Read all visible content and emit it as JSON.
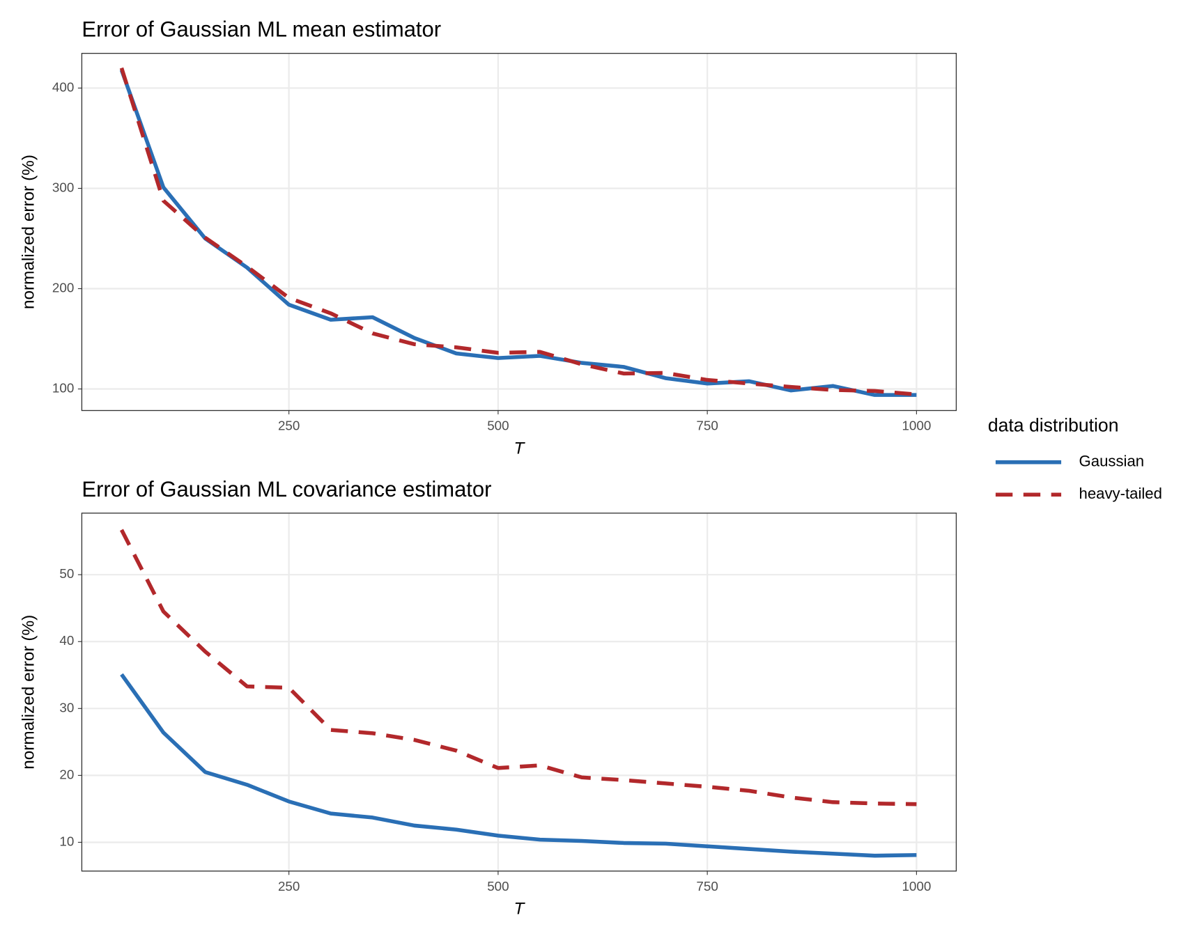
{
  "chart_data": [
    {
      "type": "line",
      "title": "Error of Gaussian ML mean estimator",
      "x_label": "T",
      "y_label": "normalized error (%)",
      "x": [
        50,
        100,
        150,
        200,
        250,
        300,
        350,
        400,
        450,
        500,
        550,
        600,
        650,
        700,
        750,
        800,
        850,
        900,
        950,
        1000
      ],
      "series": [
        {
          "name": "Gaussian",
          "color": "#2a6fb5",
          "linestyle": "solid",
          "values": [
            418,
            301,
            250,
            221,
            184,
            169,
            171.5,
            150.8,
            135.4,
            130.8,
            133,
            126,
            122,
            110.8,
            105.4,
            107.7,
            98.5,
            103,
            94,
            94
          ]
        },
        {
          "name": "heavy-tailed",
          "color": "#b2282b",
          "linestyle": "dashed",
          "values": [
            420,
            287.7,
            250.8,
            222,
            190.8,
            175.4,
            155.4,
            144.6,
            141.5,
            136,
            137,
            124.6,
            115.4,
            116,
            109,
            105.4,
            102,
            99,
            98,
            94.6
          ]
        }
      ],
      "xlim": [
        2.5,
        1047.5
      ],
      "xticks": [
        250,
        500,
        750,
        1000
      ],
      "ylim": [
        78.5,
        434.6
      ],
      "yticks": [
        100,
        200,
        300,
        400
      ],
      "grid": true,
      "legend": "right",
      "legend_title": "data distribution"
    },
    {
      "type": "line",
      "title": "Error of Gaussian ML covariance estimator",
      "x_label": "T",
      "y_label": "normalized error (%)",
      "x": [
        50,
        100,
        150,
        200,
        250,
        300,
        350,
        400,
        450,
        500,
        550,
        600,
        650,
        700,
        750,
        800,
        850,
        900,
        950,
        1000
      ],
      "series": [
        {
          "name": "Gaussian",
          "color": "#2a6fb5",
          "linestyle": "solid",
          "values": [
            35.1,
            26.4,
            20.5,
            18.6,
            16.1,
            14.3,
            13.7,
            12.5,
            11.9,
            11.0,
            10.4,
            10.2,
            9.9,
            9.8,
            9.4,
            9.0,
            8.6,
            8.3,
            8.0,
            8.1
          ]
        },
        {
          "name": "heavy-tailed",
          "color": "#b2282b",
          "linestyle": "dashed",
          "values": [
            56.7,
            44.5,
            38.5,
            33.3,
            33.1,
            26.8,
            26.3,
            25.3,
            23.7,
            21.1,
            21.5,
            19.7,
            19.3,
            18.8,
            18.3,
            17.7,
            16.7,
            16.0,
            15.8,
            15.7
          ]
        }
      ],
      "xlim": [
        2.5,
        1047.5
      ],
      "xticks": [
        250,
        500,
        750,
        1000
      ],
      "ylim": [
        5.7,
        59.2
      ],
      "yticks": [
        10,
        20,
        30,
        40,
        50
      ],
      "grid": true
    }
  ]
}
